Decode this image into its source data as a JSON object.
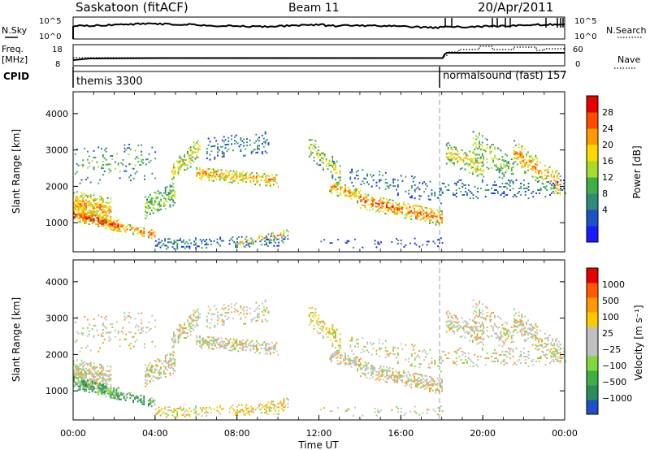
{
  "header": {
    "station": "Saskatoon (fitACF)",
    "beam": "Beam 11",
    "date": "20/Apr/2011"
  },
  "strips": {
    "nsky_label": "N.Sky",
    "nsearch_label": "N.Search",
    "noise_ticks": [
      "10^5",
      "10^0"
    ],
    "freq_label": "Freq.",
    "freq_unit": "[MHz]",
    "freq_ticks": [
      "18",
      "8"
    ],
    "nave_label": "Nave",
    "nave_ticks": [
      "60",
      "0"
    ],
    "cpid_label": "CPID",
    "cpid_segments": [
      {
        "name": "themis 3300",
        "start_hour": 0
      },
      {
        "name": "normalsound (fast) 157",
        "start_hour": 18.0
      }
    ]
  },
  "chart_data": [
    {
      "type": "heatmap",
      "name": "power",
      "ylabel": "Slant Range [km]",
      "ylim": [
        200,
        4600
      ],
      "yticks": [
        1000,
        2000,
        3000,
        4000
      ],
      "xlim": [
        0,
        24
      ],
      "colorbar_label": "Power [dB]",
      "colorbar_ticks": [
        "28",
        "24",
        "20",
        "16",
        "12",
        "8",
        "4"
      ],
      "colorbar_colors": [
        "#1a1aff",
        "#2050c8",
        "#2e8b7a",
        "#3cb043",
        "#a8dc28",
        "#ffd800",
        "#ff9a00",
        "#ff4a00",
        "#e60000"
      ]
    },
    {
      "type": "heatmap",
      "name": "velocity",
      "ylabel": "Slant Range [km]",
      "ylim": [
        200,
        4600
      ],
      "yticks": [
        1000,
        2000,
        3000,
        4000
      ],
      "xlim": [
        0,
        24
      ],
      "xlabel": "Time UT",
      "xtick_labels": [
        "00:00",
        "04:00",
        "08:00",
        "12:00",
        "16:00",
        "20:00",
        "00:00"
      ],
      "colorbar_label": "Velocity [m s⁻¹]",
      "colorbar_ticks": [
        "1000",
        "500",
        "100",
        "25",
        "−25",
        "−100",
        "−500",
        "−1000"
      ],
      "colorbar_colors": [
        "#e60000",
        "#ff5a00",
        "#ff9a00",
        "#ffc800",
        "#c0c0c0",
        "#c0c0c0",
        "#7fd83c",
        "#3cb043",
        "#2e8b5a",
        "#2050c8"
      ]
    }
  ]
}
